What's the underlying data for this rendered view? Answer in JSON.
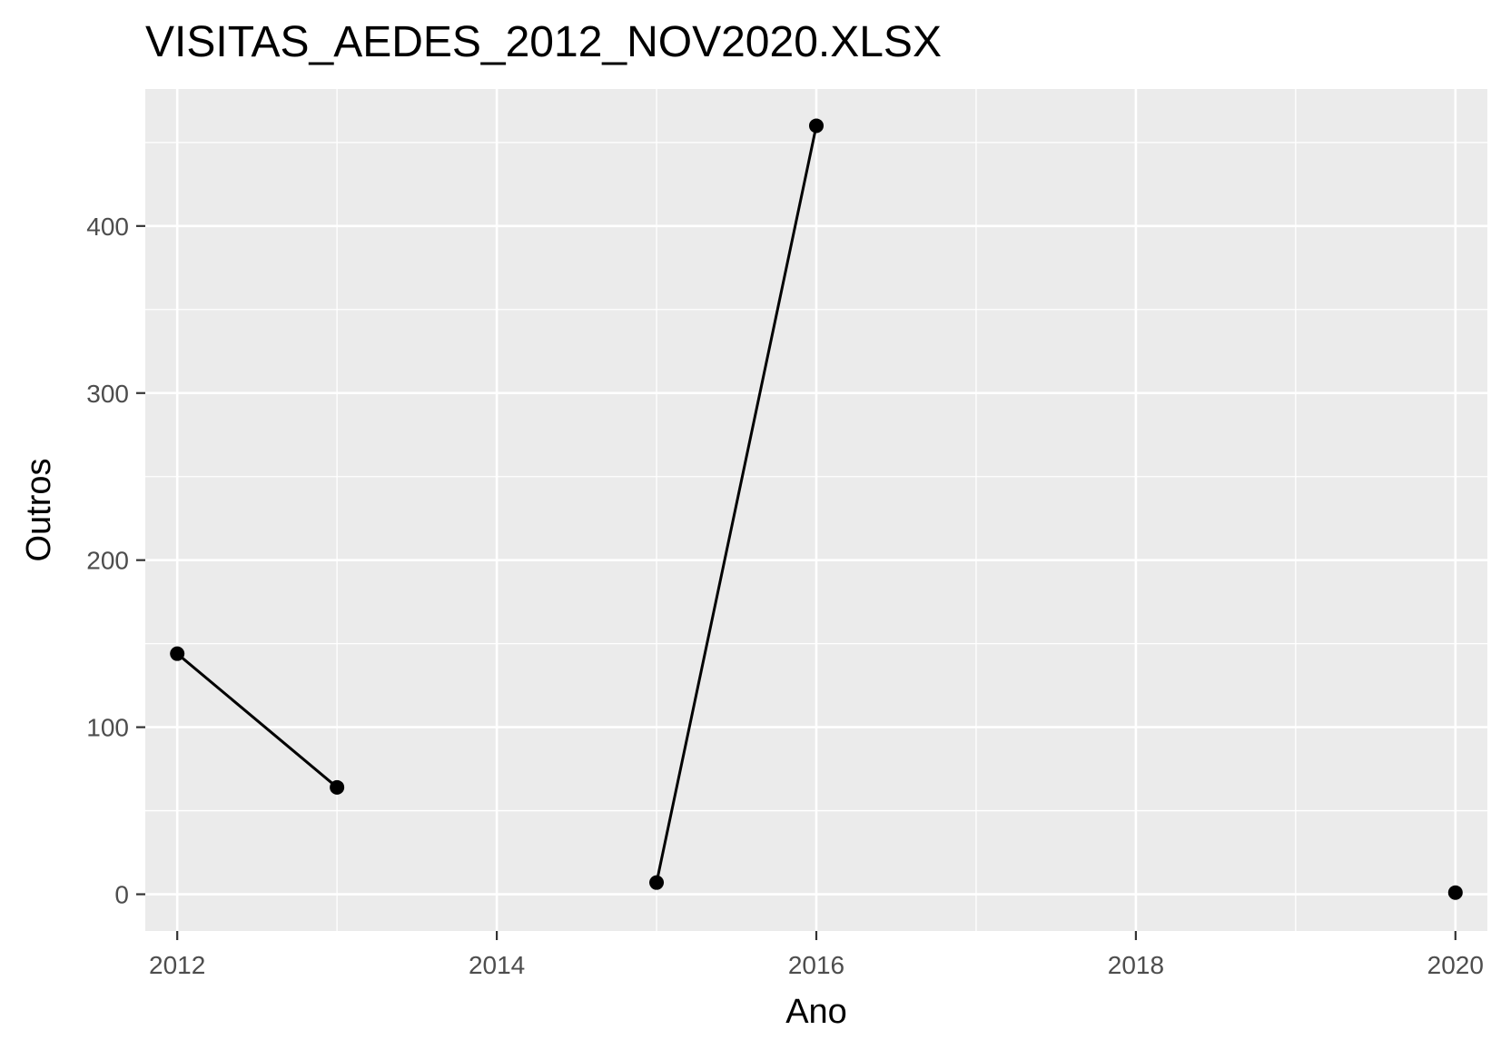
{
  "chart_data": {
    "type": "line",
    "title": "VISITAS_AEDES_2012_NOV2020.XLSX",
    "xlabel": "Ano",
    "ylabel": "Outros",
    "x_ticks": [
      2012,
      2014,
      2016,
      2018,
      2020
    ],
    "x_tick_labels": [
      "2012",
      "2014",
      "2016",
      "2018",
      "2020"
    ],
    "y_ticks": [
      0,
      100,
      200,
      300,
      400
    ],
    "y_tick_labels": [
      "0",
      "100",
      "200",
      "300",
      "400"
    ],
    "xlim": [
      2011.8,
      2020.2
    ],
    "ylim": [
      -22,
      482
    ],
    "grid": true,
    "colors": {
      "panel_background": "#ebebeb",
      "grid": "#ffffff",
      "line": "#000000",
      "point": "#000000",
      "tick_label": "#4d4d4d",
      "tick_mark": "#333333"
    },
    "series": [
      {
        "segments": [
          [
            {
              "x": 2012,
              "y": 144
            },
            {
              "x": 2013,
              "y": 64
            }
          ],
          [
            {
              "x": 2015,
              "y": 7
            },
            {
              "x": 2016,
              "y": 460
            }
          ],
          [
            {
              "x": 2020,
              "y": 1
            }
          ]
        ]
      }
    ]
  }
}
